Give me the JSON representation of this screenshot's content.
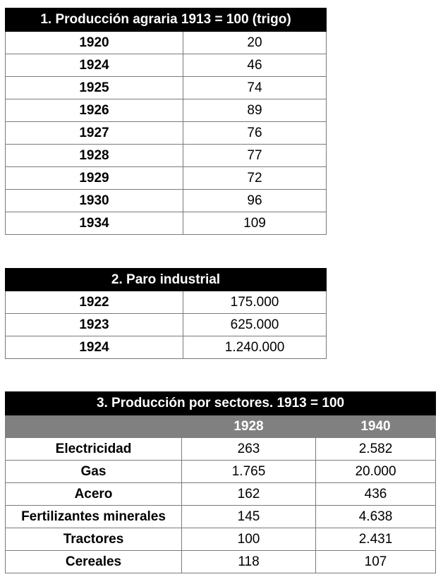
{
  "table1": {
    "title": "1. Producción agraria 1913 = 100 (trigo)",
    "rows": [
      {
        "year": "1920",
        "value": "20"
      },
      {
        "year": "1924",
        "value": "46"
      },
      {
        "year": "1925",
        "value": "74"
      },
      {
        "year": "1926",
        "value": "89"
      },
      {
        "year": "1927",
        "value": "76"
      },
      {
        "year": "1928",
        "value": "77"
      },
      {
        "year": "1929",
        "value": "72"
      },
      {
        "year": "1930",
        "value": "96"
      },
      {
        "year": "1934",
        "value": "109"
      }
    ]
  },
  "table2": {
    "title": "2. Paro industrial",
    "rows": [
      {
        "year": "1922",
        "value": "175.000"
      },
      {
        "year": "1923",
        "value": "625.000"
      },
      {
        "year": "1924",
        "value": "1.240.000"
      }
    ]
  },
  "table3": {
    "title": "3. Producción por sectores. 1913 = 100",
    "columns": [
      "",
      "1928",
      "1940"
    ],
    "rows": [
      {
        "sector": "Electricidad",
        "v1928": "263",
        "v1940": "2.582"
      },
      {
        "sector": "Gas",
        "v1928": "1.765",
        "v1940": "20.000"
      },
      {
        "sector": "Acero",
        "v1928": "162",
        "v1940": "436"
      },
      {
        "sector": "Fertilizantes minerales",
        "v1928": "145",
        "v1940": "4.638"
      },
      {
        "sector": "Tractores",
        "v1928": "100",
        "v1940": "2.431"
      },
      {
        "sector": "Cereales",
        "v1928": "118",
        "v1940": "107"
      }
    ]
  }
}
